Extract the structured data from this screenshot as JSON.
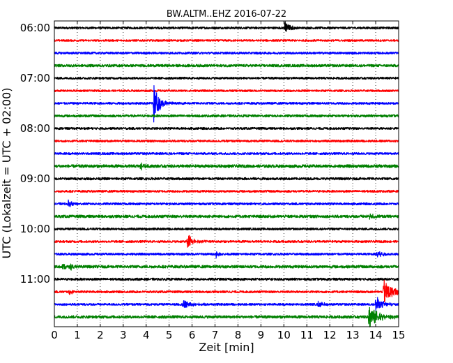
{
  "chart_data": {
    "type": "line",
    "title": "BW.ALTM..EHZ 2016-07-22",
    "xlabel": "Zeit  [min]",
    "ylabel": "UTC (Lokalzeit = UTC + 02:00)",
    "xlim": [
      0,
      15
    ],
    "x_ticks": [
      "0",
      "1",
      "2",
      "3",
      "4",
      "5",
      "6",
      "7",
      "8",
      "9",
      "10",
      "11",
      "12",
      "13",
      "14",
      "15"
    ],
    "y_tick_labels": [
      "06:00",
      "07:00",
      "08:00",
      "09:00",
      "10:00",
      "11:00"
    ],
    "grid": "vertical dotted",
    "traces_per_hour": 4,
    "trace_minutes": 15,
    "colors": [
      "#000000",
      "#ff0000",
      "#0000ff",
      "#008000"
    ],
    "rows": [
      {
        "start": "06:00",
        "color": "#000000",
        "noise": 0.22,
        "events": [
          {
            "t": 10.05,
            "amp": 1.4,
            "decay": 0.18,
            "dur": 0.6
          }
        ]
      },
      {
        "start": "06:15",
        "color": "#ff0000",
        "noise": 0.2,
        "events": []
      },
      {
        "start": "06:30",
        "color": "#0000ff",
        "noise": 0.22,
        "events": []
      },
      {
        "start": "06:45",
        "color": "#008000",
        "noise": 0.26,
        "events": []
      },
      {
        "start": "07:00",
        "color": "#000000",
        "noise": 0.22,
        "events": []
      },
      {
        "start": "07:15",
        "color": "#ff0000",
        "noise": 0.2,
        "events": []
      },
      {
        "start": "07:30",
        "color": "#0000ff",
        "noise": 0.22,
        "events": [
          {
            "t": 4.33,
            "amp": 4.2,
            "decay": 0.22,
            "dur": 1.3
          }
        ]
      },
      {
        "start": "07:45",
        "color": "#008000",
        "noise": 0.24,
        "events": []
      },
      {
        "start": "08:00",
        "color": "#000000",
        "noise": 0.22,
        "events": []
      },
      {
        "start": "08:15",
        "color": "#ff0000",
        "noise": 0.22,
        "events": []
      },
      {
        "start": "08:30",
        "color": "#0000ff",
        "noise": 0.22,
        "events": []
      },
      {
        "start": "08:45",
        "color": "#008000",
        "noise": 0.3,
        "events": [
          {
            "t": 3.75,
            "amp": 0.9,
            "decay": 0.12,
            "dur": 0.4
          }
        ]
      },
      {
        "start": "09:00",
        "color": "#000000",
        "noise": 0.24,
        "events": []
      },
      {
        "start": "09:15",
        "color": "#ff0000",
        "noise": 0.22,
        "events": []
      },
      {
        "start": "09:30",
        "color": "#0000ff",
        "noise": 0.22,
        "events": [
          {
            "t": 0.6,
            "amp": 0.8,
            "decay": 0.15,
            "dur": 0.5
          }
        ]
      },
      {
        "start": "09:45",
        "color": "#008000",
        "noise": 0.28,
        "events": [
          {
            "t": 13.75,
            "amp": 0.8,
            "decay": 0.15,
            "dur": 0.5
          }
        ]
      },
      {
        "start": "10:00",
        "color": "#000000",
        "noise": 0.22,
        "events": []
      },
      {
        "start": "10:15",
        "color": "#ff0000",
        "noise": 0.22,
        "events": [
          {
            "t": 5.8,
            "amp": 1.6,
            "decay": 0.25,
            "dur": 1.0
          }
        ]
      },
      {
        "start": "10:30",
        "color": "#0000ff",
        "noise": 0.22,
        "events": [
          {
            "t": 7.05,
            "amp": 0.7,
            "decay": 0.1,
            "dur": 0.3
          },
          {
            "t": 14.05,
            "amp": 1.3,
            "decay": 0.2,
            "dur": 0.6
          }
        ]
      },
      {
        "start": "10:45",
        "color": "#008000",
        "noise": 0.28,
        "events": [
          {
            "t": 0.35,
            "amp": 0.9,
            "decay": 0.15,
            "dur": 0.5
          },
          {
            "t": 0.7,
            "amp": 0.7,
            "decay": 0.12,
            "dur": 0.4
          }
        ]
      },
      {
        "start": "11:00",
        "color": "#000000",
        "noise": 0.24,
        "events": []
      },
      {
        "start": "11:15",
        "color": "#ff0000",
        "noise": 0.22,
        "events": [
          {
            "t": 0.65,
            "amp": 0.8,
            "decay": 0.1,
            "dur": 0.3
          },
          {
            "t": 14.35,
            "amp": 2.8,
            "decay": 0.35,
            "dur": 1.2
          }
        ]
      },
      {
        "start": "11:30",
        "color": "#0000ff",
        "noise": 0.22,
        "events": [
          {
            "t": 5.6,
            "amp": 1.0,
            "decay": 0.3,
            "dur": 1.3
          },
          {
            "t": 11.5,
            "amp": 0.8,
            "decay": 0.2,
            "dur": 0.5
          },
          {
            "t": 14.0,
            "amp": 1.8,
            "decay": 0.25,
            "dur": 0.8
          }
        ]
      },
      {
        "start": "11:45",
        "color": "#008000",
        "noise": 0.28,
        "events": [
          {
            "t": 13.7,
            "amp": 2.6,
            "decay": 0.4,
            "dur": 1.5
          }
        ]
      }
    ]
  }
}
